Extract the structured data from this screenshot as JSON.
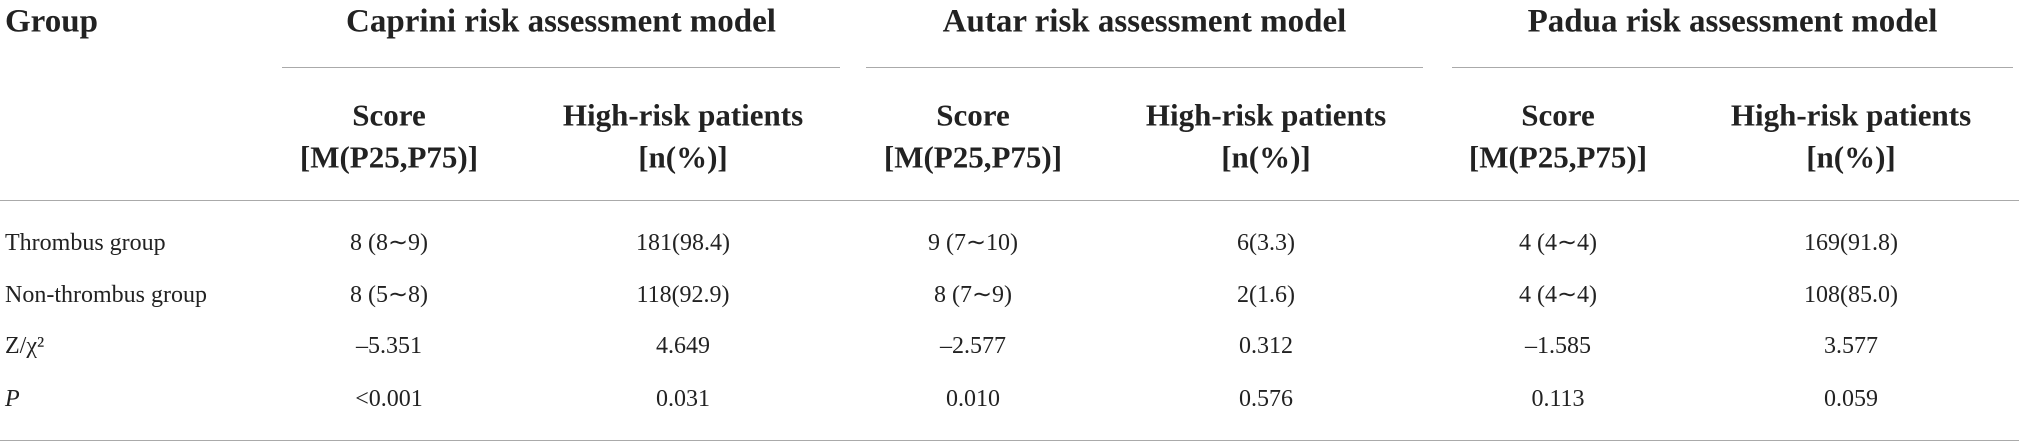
{
  "header": {
    "group": "Group",
    "models": [
      {
        "name": "Caprini risk assessment model",
        "columns": [
          {
            "line1": "Score",
            "line2": "[M(P25,P75)]"
          },
          {
            "line1": "High-risk patients",
            "line2": "[n(%)]"
          }
        ]
      },
      {
        "name": "Autar risk assessment model",
        "columns": [
          {
            "line1": "Score",
            "line2": "[M(P25,P75)]"
          },
          {
            "line1": "High-risk patients",
            "line2": "[n(%)]"
          }
        ]
      },
      {
        "name": "Padua risk assessment model",
        "columns": [
          {
            "line1": "Score",
            "line2": "[M(P25,P75)]"
          },
          {
            "line1": "High-risk patients",
            "line2": "[n(%)]"
          }
        ]
      }
    ]
  },
  "table": {
    "rows": [
      {
        "label": "Thrombus group",
        "cells": [
          "8 (8∼9)",
          "181(98.4)",
          "9 (7∼10)",
          "6(3.3)",
          "4 (4∼4)",
          "169(91.8)"
        ]
      },
      {
        "label": "Non-thrombus group",
        "cells": [
          "8 (5∼8)",
          "118(92.9)",
          "8 (7∼9)",
          "2(1.6)",
          "4 (4∼4)",
          "108(85.0)"
        ]
      },
      {
        "label": "Z/χ²",
        "cells": [
          "–5.351",
          "4.649",
          "–2.577",
          "0.312",
          "–1.585",
          "3.577"
        ]
      },
      {
        "label": "P",
        "cells": [
          "<0.001",
          "0.031",
          "0.010",
          "0.576",
          "0.113",
          "0.059"
        ]
      }
    ]
  }
}
